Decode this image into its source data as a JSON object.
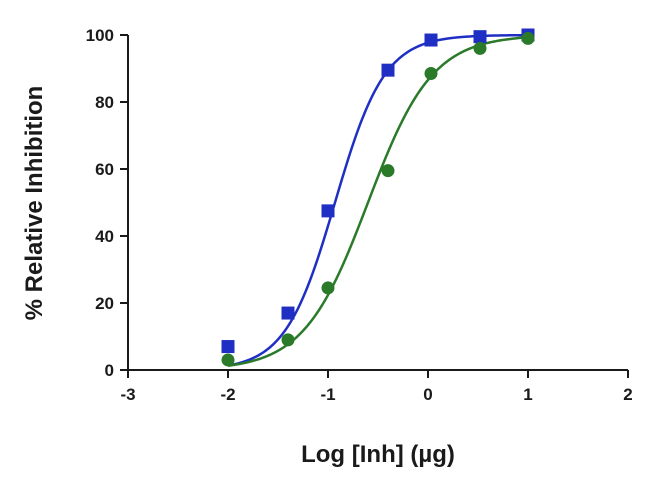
{
  "chart_data": {
    "type": "scatter",
    "title": "",
    "xlabel": "Log [Inh] (µg)",
    "ylabel": "% Relative Inhibition",
    "xlim": [
      -3,
      2
    ],
    "ylim": [
      0,
      100
    ],
    "xticks": [
      -3,
      -2,
      -1,
      0,
      1,
      2
    ],
    "yticks": [
      0,
      20,
      40,
      60,
      80,
      100
    ],
    "grid": false,
    "legend": "none",
    "series": [
      {
        "color": "#1f2fc4",
        "marker": "square",
        "fit": {
          "model": "sigmoid",
          "log_ic50": -0.93,
          "hill": 1.75,
          "bottom": 0,
          "top": 100
        },
        "x": [
          -2.0,
          -1.4,
          -1.0,
          -0.4,
          0.03,
          0.52,
          1.0
        ],
        "y": [
          7,
          17,
          47.5,
          89.5,
          98.5,
          99.5,
          100
        ]
      },
      {
        "color": "#2a7a2a",
        "marker": "circle",
        "fit": {
          "model": "sigmoid",
          "log_ic50": -0.6,
          "hill": 1.35,
          "bottom": 0,
          "top": 100
        },
        "x": [
          -2.0,
          -1.4,
          -1.0,
          -0.4,
          0.03,
          0.52,
          1.0
        ],
        "y": [
          3,
          9,
          24.5,
          59.5,
          88.5,
          96,
          99
        ]
      }
    ]
  }
}
